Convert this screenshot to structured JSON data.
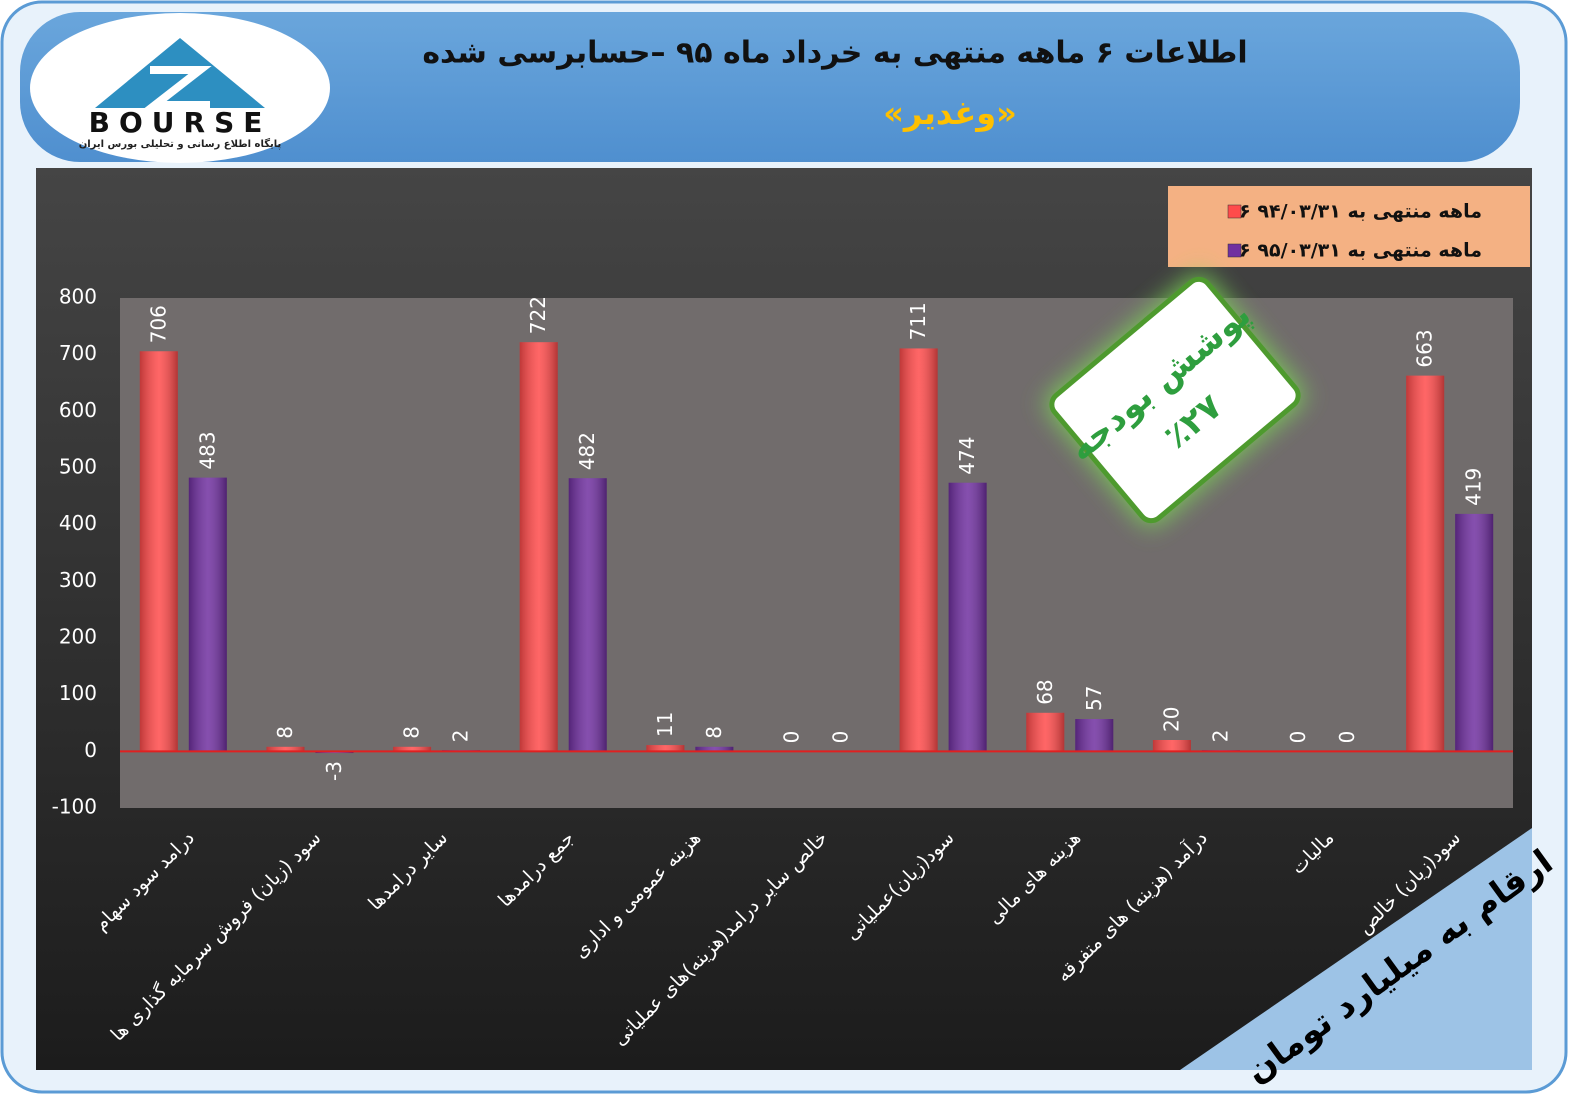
{
  "header": {
    "title": "اطلاعات ۶  ماهه منتهی به خرداد ماه ۹۵ –حسابرسی شده",
    "subtitle": "«وغدیر»"
  },
  "logo": {
    "name": "BOURSE",
    "tagline": "پایگاه اطلاع رسانی و تحلیلی بورس ایران"
  },
  "badge": [
    "پوشش بودجه",
    "٪۲۷"
  ],
  "note": "ارقام به میلیارد تومان",
  "chart_data": {
    "type": "bar",
    "categories": [
      "درامد سود سهام",
      "سود (زیان) فروش سرمایه گذاری ها",
      "سایر درامدها",
      "جمع درامدها",
      "هزینه عمومی و اداری",
      "خالص سایر درامد(هزینه)های عملیاتی",
      "سود(زیان)عملیاتی",
      "هزینه های مالی",
      "درآمد (هزینه) های متفرقه",
      "مالیات",
      "سود(زیان) خالص"
    ],
    "series": [
      {
        "name": "۶ ماهه منتهی به ۹۴/۰۳/۳۱",
        "color": "#ff4b4b",
        "values": [
          706,
          8,
          8,
          722,
          11,
          0,
          711,
          68,
          20,
          0,
          663
        ]
      },
      {
        "name": "۶ ماهه منتهی به ۹۵/۰۳/۳۱",
        "color": "#7030a0",
        "values": [
          483,
          -3,
          2,
          482,
          8,
          0,
          474,
          57,
          2,
          0,
          419
        ]
      }
    ],
    "ylim": [
      -100,
      800
    ],
    "yticks": [
      -100,
      0,
      100,
      200,
      300,
      400,
      500,
      600,
      700,
      800
    ],
    "grid": false,
    "legend": "top-right"
  }
}
